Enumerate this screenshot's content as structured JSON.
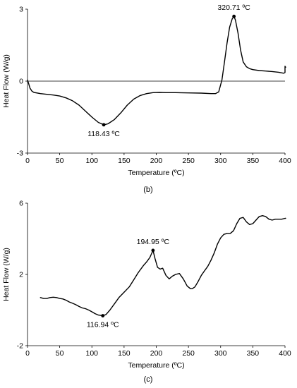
{
  "chart_data": [
    {
      "type": "line",
      "panel_label": "(b)",
      "xlabel": "Temperature (ºC)",
      "ylabel": "Heat Flow (W/g)",
      "xlim": [
        0,
        400
      ],
      "ylim": [
        -3,
        3
      ],
      "x_ticks": [
        0,
        50,
        100,
        150,
        200,
        250,
        300,
        350,
        400
      ],
      "y_ticks": [
        -3,
        0,
        3
      ],
      "grid": false,
      "series": [
        {
          "x": [
            0,
            2,
            4,
            7,
            10,
            20,
            30,
            40,
            50,
            60,
            70,
            80,
            90,
            100,
            110,
            118.43,
            125,
            135,
            145,
            155,
            165,
            175,
            185,
            195,
            205,
            215,
            230,
            250,
            270,
            285,
            292,
            297,
            302,
            306,
            310,
            314,
            318,
            320.71,
            323,
            327,
            331,
            335,
            340,
            345,
            350,
            360,
            370,
            380,
            390,
            398,
            400,
            400,
            401
          ],
          "y": [
            0.05,
            -0.12,
            -0.3,
            -0.42,
            -0.47,
            -0.52,
            -0.55,
            -0.58,
            -0.62,
            -0.7,
            -0.82,
            -1.0,
            -1.25,
            -1.5,
            -1.72,
            -1.82,
            -1.78,
            -1.6,
            -1.32,
            -1.0,
            -0.75,
            -0.6,
            -0.52,
            -0.48,
            -0.47,
            -0.48,
            -0.48,
            -0.49,
            -0.5,
            -0.52,
            -0.52,
            -0.45,
            0.05,
            0.8,
            1.6,
            2.25,
            2.6,
            2.7,
            2.55,
            2.0,
            1.3,
            0.8,
            0.6,
            0.52,
            0.48,
            0.44,
            0.42,
            0.4,
            0.37,
            0.33,
            0.36,
            0.62,
            0.58
          ]
        }
      ],
      "annotations": [
        {
          "x": 118.43,
          "y": -1.82,
          "text": "118.43 ºC",
          "position": "below"
        },
        {
          "x": 320.71,
          "y": 2.7,
          "text": "320.71 ºC",
          "position": "above"
        }
      ]
    },
    {
      "type": "line",
      "panel_label": "(c)",
      "xlabel": "Temperature (ºC)",
      "ylabel": "Heat Flow (W/g)",
      "xlim": [
        0,
        400
      ],
      "ylim": [
        -2,
        6
      ],
      "x_ticks": [
        0,
        50,
        100,
        150,
        200,
        250,
        300,
        350,
        400
      ],
      "y_ticks": [
        -2,
        2,
        6
      ],
      "grid": false,
      "series": [
        {
          "x": [
            20,
            25,
            30,
            35,
            40,
            45,
            50,
            55,
            60,
            65,
            70,
            75,
            80,
            85,
            90,
            95,
            100,
            105,
            110,
            116.94,
            122,
            128,
            135,
            142,
            150,
            158,
            165,
            172,
            180,
            185,
            190,
            194.95,
            198,
            202,
            206,
            210,
            215,
            220,
            225,
            230,
            236,
            242,
            248,
            253,
            256,
            260,
            265,
            270,
            275,
            280,
            285,
            290,
            295,
            300,
            305,
            310,
            315,
            320,
            325,
            330,
            335,
            340,
            345,
            350,
            355,
            360,
            365,
            370,
            375,
            380,
            385,
            390,
            395,
            400,
            401
          ],
          "y": [
            0.7,
            0.65,
            0.65,
            0.7,
            0.72,
            0.7,
            0.65,
            0.62,
            0.55,
            0.45,
            0.38,
            0.3,
            0.2,
            0.12,
            0.08,
            0.0,
            -0.1,
            -0.2,
            -0.28,
            -0.32,
            -0.25,
            0.0,
            0.35,
            0.7,
            1.0,
            1.3,
            1.7,
            2.1,
            2.5,
            2.7,
            2.95,
            3.35,
            2.9,
            2.4,
            2.3,
            2.35,
            1.95,
            1.75,
            1.9,
            2.0,
            2.05,
            1.75,
            1.35,
            1.2,
            1.2,
            1.3,
            1.6,
            1.95,
            2.2,
            2.45,
            2.8,
            3.2,
            3.7,
            4.05,
            4.25,
            4.3,
            4.3,
            4.45,
            4.85,
            5.15,
            5.2,
            4.95,
            4.8,
            4.85,
            5.05,
            5.25,
            5.3,
            5.25,
            5.1,
            5.05,
            5.1,
            5.1,
            5.1,
            5.15,
            5.15
          ]
        }
      ],
      "annotations": [
        {
          "x": 116.94,
          "y": -0.32,
          "text": "116.94 ºC",
          "position": "below"
        },
        {
          "x": 194.95,
          "y": 3.35,
          "text": "194.95 ºC",
          "position": "above"
        }
      ]
    }
  ]
}
